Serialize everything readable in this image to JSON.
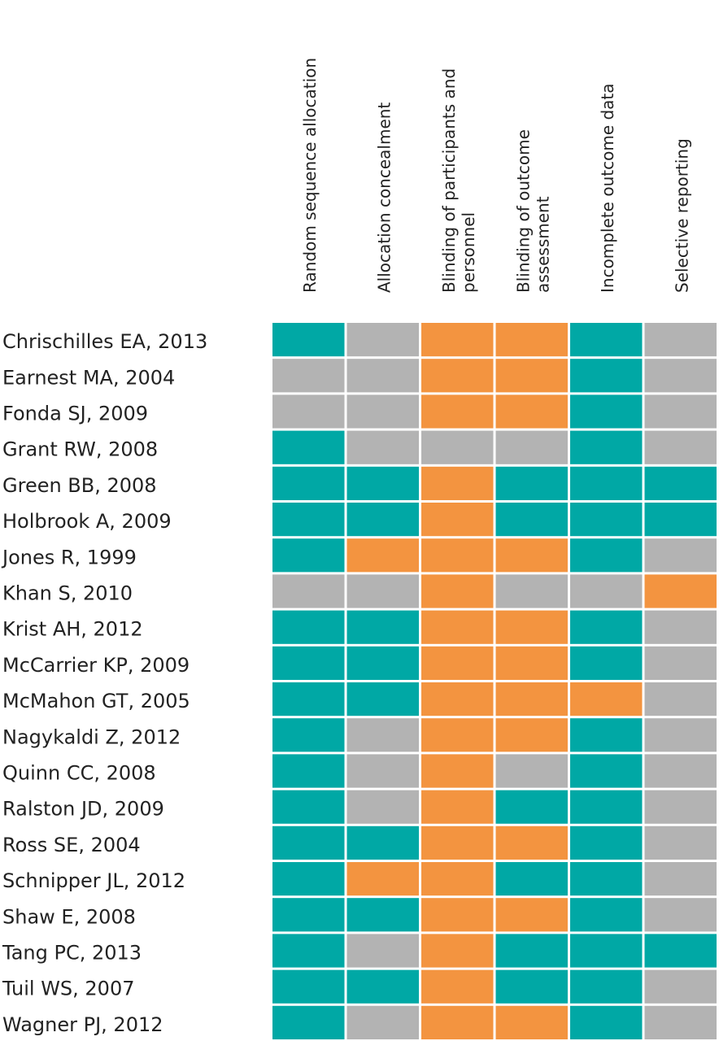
{
  "chart_data": {
    "type": "heatmap",
    "columns": [
      [
        "Random sequence allocation"
      ],
      [
        "Allocation concealment"
      ],
      [
        "Blinding of participants and",
        "personnel"
      ],
      [
        "Blinding of outcome",
        "assessment"
      ],
      [
        "Incomplete outcome data"
      ],
      [
        "Selective reporting"
      ]
    ],
    "rows": [
      "Chrischilles EA, 2013",
      "Earnest MA, 2004",
      "Fonda SJ, 2009",
      "Grant RW, 2008",
      "Green BB, 2008",
      "Holbrook A, 2009",
      "Jones R, 1999",
      "Khan S, 2010",
      "Krist AH, 2012",
      "McCarrier KP, 2009",
      "McMahon GT, 2005",
      "Nagykaldi Z, 2012",
      "Quinn CC, 2008",
      "Ralston JD, 2009",
      "Ross SE, 2004",
      "Schnipper JL, 2012",
      "Shaw E, 2008",
      "Tang PC, 2013",
      "Tuil WS, 2007",
      "Wagner PJ, 2012"
    ],
    "cells": [
      [
        "teal",
        "grey",
        "orange",
        "orange",
        "teal",
        "grey"
      ],
      [
        "grey",
        "grey",
        "orange",
        "orange",
        "teal",
        "grey"
      ],
      [
        "grey",
        "grey",
        "orange",
        "orange",
        "teal",
        "grey"
      ],
      [
        "teal",
        "grey",
        "grey",
        "grey",
        "teal",
        "grey"
      ],
      [
        "teal",
        "teal",
        "orange",
        "teal",
        "teal",
        "teal"
      ],
      [
        "teal",
        "teal",
        "orange",
        "teal",
        "teal",
        "teal"
      ],
      [
        "teal",
        "orange",
        "orange",
        "orange",
        "teal",
        "grey"
      ],
      [
        "grey",
        "grey",
        "orange",
        "grey",
        "grey",
        "orange"
      ],
      [
        "teal",
        "teal",
        "orange",
        "orange",
        "teal",
        "grey"
      ],
      [
        "teal",
        "teal",
        "orange",
        "orange",
        "teal",
        "grey"
      ],
      [
        "teal",
        "teal",
        "orange",
        "orange",
        "orange",
        "grey"
      ],
      [
        "teal",
        "grey",
        "orange",
        "orange",
        "teal",
        "grey"
      ],
      [
        "teal",
        "grey",
        "orange",
        "grey",
        "teal",
        "grey"
      ],
      [
        "teal",
        "grey",
        "orange",
        "teal",
        "teal",
        "grey"
      ],
      [
        "teal",
        "teal",
        "orange",
        "orange",
        "teal",
        "grey"
      ],
      [
        "teal",
        "orange",
        "orange",
        "teal",
        "teal",
        "grey"
      ],
      [
        "teal",
        "teal",
        "orange",
        "orange",
        "teal",
        "grey"
      ],
      [
        "teal",
        "grey",
        "orange",
        "teal",
        "teal",
        "teal"
      ],
      [
        "teal",
        "teal",
        "orange",
        "teal",
        "teal",
        "grey"
      ],
      [
        "teal",
        "grey",
        "orange",
        "orange",
        "teal",
        "grey"
      ]
    ],
    "colors": {
      "teal": "#00a8a5",
      "grey": "#b3b3b3",
      "orange": "#f39440"
    }
  }
}
